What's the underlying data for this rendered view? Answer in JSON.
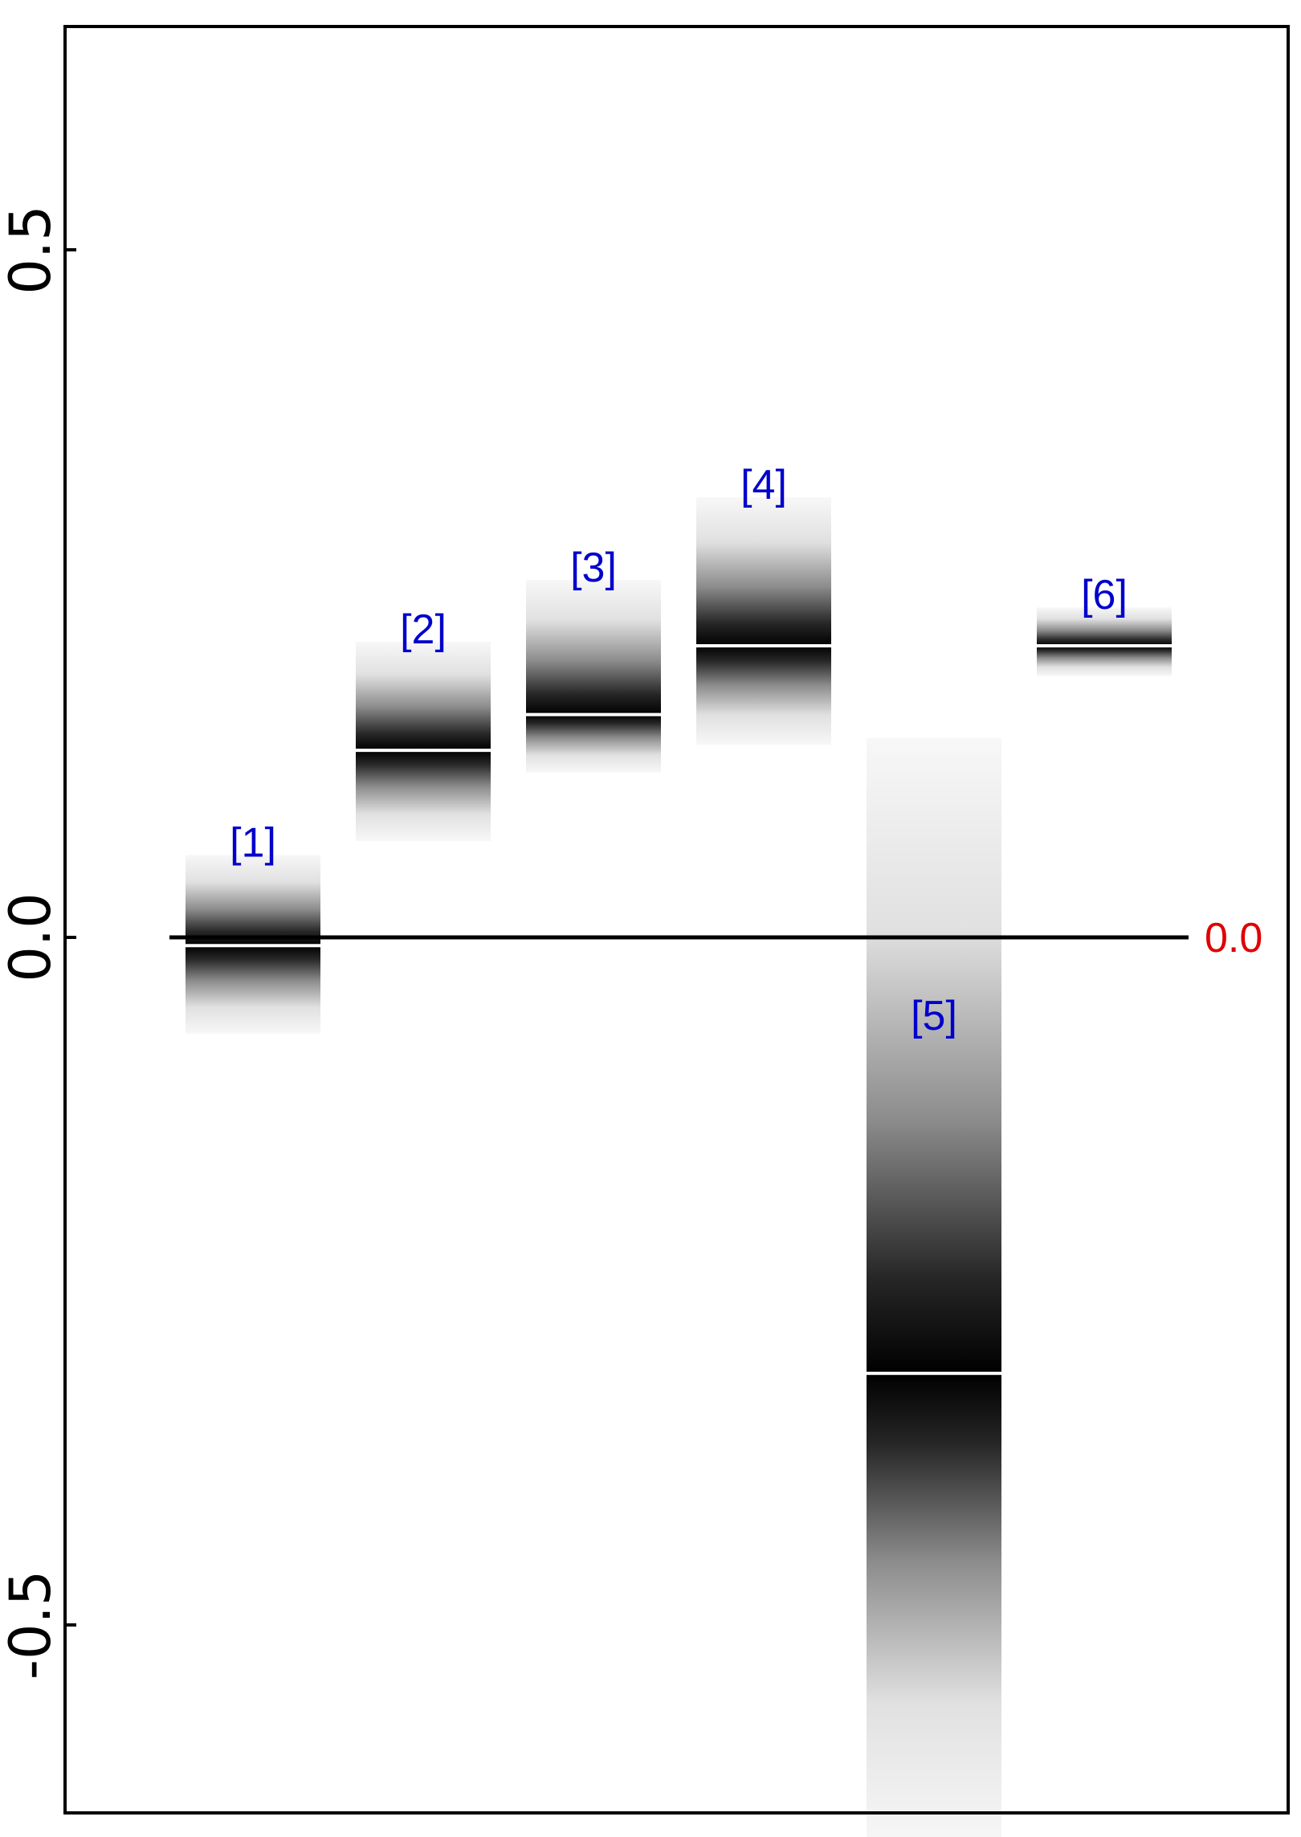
{
  "chart_data": {
    "type": "bar",
    "title": "",
    "xlabel": "",
    "ylabel": "",
    "ylim": [
      -0.65,
      0.7
    ],
    "yticks": [
      {
        "value": 0.5,
        "label": "0.5"
      },
      {
        "value": 0.0,
        "label": "0.0"
      },
      {
        "value": -0.5,
        "label": "-0.5"
      }
    ],
    "reference_line": {
      "value": 0.0,
      "label": "0.0",
      "color": "#e00000"
    },
    "categories": [
      "[1]",
      "[2]",
      "[3]",
      "[4]",
      "[5]",
      "[6]"
    ],
    "series": [
      {
        "values": [
          -0.006,
          0.136,
          0.162,
          0.212,
          -0.317,
          0.212
        ],
        "interval_low": [
          -0.07,
          0.07,
          0.12,
          0.14,
          -0.66,
          0.19
        ],
        "interval_high": [
          0.06,
          0.215,
          0.26,
          0.32,
          0.145,
          0.24
        ]
      }
    ],
    "grid": false,
    "legend": "none",
    "label_color": "#0000cc",
    "shade_color": "#000000",
    "mean_line_color": "#ffffff"
  }
}
